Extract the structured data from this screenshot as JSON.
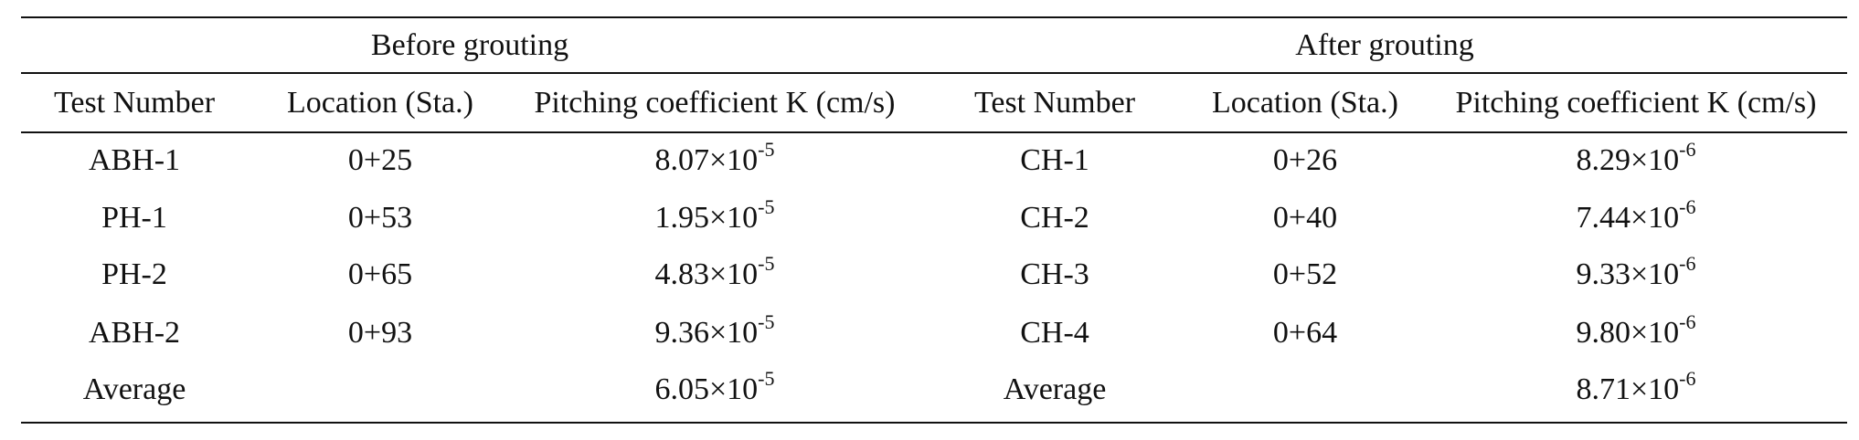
{
  "table": {
    "groups": [
      "Before grouting",
      "After grouting"
    ],
    "columns": [
      "Test Number",
      "Location (Sta.)",
      "Pitching coefficient K (cm/s)",
      "Test Number",
      "Location (Sta.)",
      "Pitching coefficient K (cm/s)"
    ],
    "before": [
      {
        "test": "ABH-1",
        "location": "0+25",
        "k": {
          "base": "8.07×10",
          "exp": "-5"
        }
      },
      {
        "test": "PH-1",
        "location": "0+53",
        "k": {
          "base": "1.95×10",
          "exp": "-5"
        }
      },
      {
        "test": "PH-2",
        "location": "0+65",
        "k": {
          "base": "4.83×10",
          "exp": "-5"
        }
      },
      {
        "test": "ABH-2",
        "location": "0+93",
        "k": {
          "base": "9.36×10",
          "exp": "-5"
        }
      },
      {
        "test": "Average",
        "k": {
          "base": "6.05×10",
          "exp": "-5"
        }
      }
    ],
    "after": [
      {
        "test": "CH-1",
        "location": "0+26",
        "k": {
          "base": "8.29×10",
          "exp": "-6"
        }
      },
      {
        "test": "CH-2",
        "location": "0+40",
        "k": {
          "base": "7.44×10",
          "exp": "-6"
        }
      },
      {
        "test": "CH-3",
        "location": "0+52",
        "k": {
          "base": "9.33×10",
          "exp": "-6"
        }
      },
      {
        "test": "CH-4",
        "location": "0+64",
        "k": {
          "base": "9.80×10",
          "exp": "-6"
        }
      },
      {
        "test": "Average",
        "k": {
          "base": "8.71×10",
          "exp": "-6"
        }
      }
    ]
  }
}
